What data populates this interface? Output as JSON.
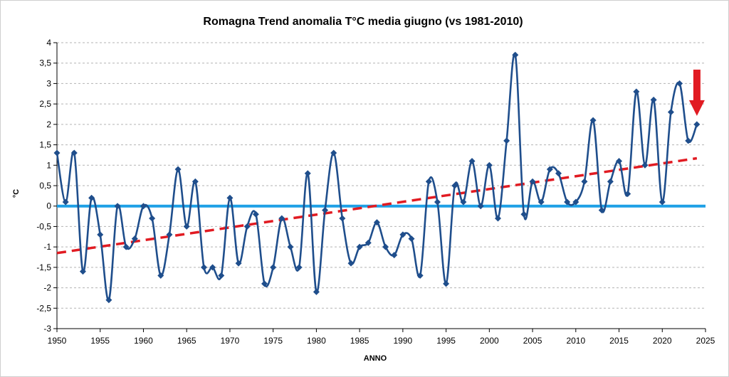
{
  "chart_data": {
    "type": "line",
    "title": "Romagna Trend anomalia T°C media giugno (vs 1981-2010)",
    "xlabel": "ANNO",
    "ylabel": "°C",
    "xlim": [
      1950,
      2025
    ],
    "ylim": [
      -3,
      4
    ],
    "x_ticks": [
      "1950",
      "1955",
      "1960",
      "1965",
      "1970",
      "1975",
      "1980",
      "1985",
      "1990",
      "1995",
      "2000",
      "2005",
      "2010",
      "2015",
      "2020",
      "2025"
    ],
    "y_ticks": [
      "4",
      "3,5",
      "3",
      "2,5",
      "2",
      "1,5",
      "1",
      "0,5",
      "0",
      "-0,5",
      "-1",
      "-1,5",
      "-2",
      "-2,5",
      "-3"
    ],
    "grid": true,
    "series": [
      {
        "color": "#1f4e8c",
        "x": [
          1950,
          1951,
          1952,
          1953,
          1954,
          1955,
          1956,
          1957,
          1958,
          1959,
          1960,
          1961,
          1962,
          1963,
          1964,
          1965,
          1966,
          1967,
          1968,
          1969,
          1970,
          1971,
          1972,
          1973,
          1974,
          1975,
          1976,
          1977,
          1978,
          1979,
          1980,
          1981,
          1982,
          1983,
          1984,
          1985,
          1986,
          1987,
          1988,
          1989,
          1990,
          1991,
          1992,
          1993,
          1994,
          1995,
          1996,
          1997,
          1998,
          1999,
          2000,
          2001,
          2002,
          2003,
          2004,
          2005,
          2006,
          2007,
          2008,
          2009,
          2010,
          2011,
          2012,
          2013,
          2014,
          2015,
          2016,
          2017,
          2018,
          2019,
          2020,
          2021,
          2022,
          2023,
          2024
        ],
        "values": [
          1.3,
          0.1,
          1.3,
          -1.6,
          0.2,
          -0.7,
          -2.3,
          0.0,
          -1.0,
          -0.8,
          0.0,
          -0.3,
          -1.7,
          -0.7,
          0.9,
          -0.5,
          0.6,
          -1.5,
          -1.5,
          -1.7,
          0.2,
          -1.4,
          -0.5,
          -0.2,
          -1.9,
          -1.5,
          -0.3,
          -1.0,
          -1.5,
          0.8,
          -2.1,
          -0.1,
          1.3,
          -0.3,
          -1.4,
          -1.0,
          -0.9,
          -0.4,
          -1.0,
          -1.2,
          -0.7,
          -0.8,
          -1.7,
          0.6,
          0.1,
          -1.9,
          0.5,
          0.1,
          1.1,
          0.0,
          1.0,
          -0.3,
          1.6,
          3.7,
          -0.2,
          0.6,
          0.1,
          0.9,
          0.8,
          0.1,
          0.1,
          0.6,
          2.1,
          -0.1,
          0.6,
          1.1,
          0.3,
          2.8,
          1.0,
          2.6,
          0.1,
          2.3,
          3.0,
          1.6,
          2.0
        ]
      }
    ],
    "reference_line": {
      "value": 0,
      "color": "#1ea0e6"
    },
    "trend_line": {
      "x": [
        1950,
        2024
      ],
      "values": [
        -1.15,
        1.17
      ],
      "color": "#e11b22",
      "style": "dashed"
    },
    "annotation": {
      "type": "arrow",
      "color": "#e11b22",
      "target_x": 2024,
      "direction": "down"
    }
  }
}
